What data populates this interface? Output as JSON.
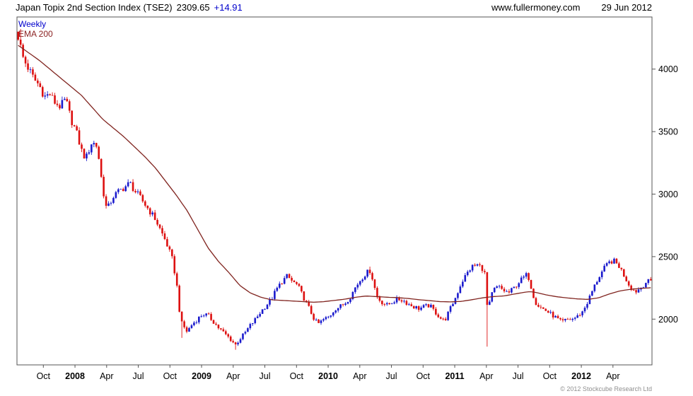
{
  "header": {
    "title": "Japan Topix 2nd Section Index (TSE2)",
    "last_price": "2309.65",
    "change": "+14.91",
    "site": "www.fullermoney.com",
    "date": "29 Jun 2012"
  },
  "legend": {
    "timeframe": "Weekly",
    "overlay": "EMA 200"
  },
  "footer": {
    "copyright": "© 2012 Stockcube Research Ltd"
  },
  "colors": {
    "up": "#1a1acd",
    "down": "#dd1010",
    "ema": "#80241f",
    "border": "#555555",
    "text": "#000000",
    "accent_blue": "#0000cc",
    "accent_maroon": "#8b2222",
    "muted": "#8f8f8f"
  },
  "chart_data": {
    "type": "candlestick",
    "title": "Japan Topix 2nd Section Index (TSE2)",
    "timeframe": "Weekly",
    "overlay": "EMA 200",
    "last_close": 2309.65,
    "change": "+14.91",
    "x_start": "Jul 2007",
    "x_end": "Jun 2012",
    "ylim": [
      1634,
      4417
    ],
    "y_ticks": [
      4000,
      3500,
      3000,
      2500,
      2000
    ],
    "x_ticks": [
      {
        "label": "Oct",
        "m": 2.5
      },
      {
        "label": "2008",
        "m": 5.5,
        "bold": true
      },
      {
        "label": "Apr",
        "m": 8.5
      },
      {
        "label": "Jul",
        "m": 11.5
      },
      {
        "label": "Oct",
        "m": 14.5
      },
      {
        "label": "2009",
        "m": 17.5,
        "bold": true
      },
      {
        "label": "Apr",
        "m": 20.5
      },
      {
        "label": "Jul",
        "m": 23.5
      },
      {
        "label": "Oct",
        "m": 26.5
      },
      {
        "label": "2010",
        "m": 29.5,
        "bold": true
      },
      {
        "label": "Apr",
        "m": 32.5
      },
      {
        "label": "Jul",
        "m": 35.5
      },
      {
        "label": "Oct",
        "m": 38.5
      },
      {
        "label": "2011",
        "m": 41.5,
        "bold": true
      },
      {
        "label": "Apr",
        "m": 44.5
      },
      {
        "label": "Jul",
        "m": 47.5
      },
      {
        "label": "Oct",
        "m": 50.5
      },
      {
        "label": "2012",
        "m": 53.5,
        "bold": true
      },
      {
        "label": "Apr",
        "m": 56.5
      }
    ],
    "weeks_total": 260,
    "months_total": 60.2,
    "price_anchors": [
      [
        0,
        4260
      ],
      [
        0.5,
        4080
      ],
      [
        1,
        4000
      ],
      [
        1.5,
        3920
      ],
      [
        2,
        3870
      ],
      [
        2.5,
        3780
      ],
      [
        3,
        3800
      ],
      [
        3.5,
        3730
      ],
      [
        4,
        3700
      ],
      [
        4.5,
        3760
      ],
      [
        5,
        3600
      ],
      [
        5.5,
        3500
      ],
      [
        6,
        3350
      ],
      [
        6.4,
        3280
      ],
      [
        7,
        3420
      ],
      [
        7.5,
        3380
      ],
      [
        8,
        3050
      ],
      [
        8.4,
        2870
      ],
      [
        9,
        2980
      ],
      [
        9.5,
        3020
      ],
      [
        10,
        3050
      ],
      [
        10.6,
        3090
      ],
      [
        11,
        3030
      ],
      [
        11.5,
        2980
      ],
      [
        12,
        2920
      ],
      [
        13,
        2800
      ],
      [
        13.5,
        2710
      ],
      [
        14,
        2620
      ],
      [
        14.6,
        2480
      ],
      [
        15,
        2300
      ],
      [
        15.4,
        1980
      ],
      [
        16,
        1900
      ],
      [
        16.5,
        1960
      ],
      [
        17,
        2000
      ],
      [
        17.5,
        2040
      ],
      [
        18,
        2030
      ],
      [
        18.5,
        1980
      ],
      [
        19,
        1930
      ],
      [
        19.5,
        1890
      ],
      [
        20,
        1850
      ],
      [
        20.6,
        1795
      ],
      [
        21,
        1840
      ],
      [
        21.5,
        1890
      ],
      [
        22,
        1950
      ],
      [
        22.5,
        2000
      ],
      [
        23,
        2060
      ],
      [
        23.5,
        2110
      ],
      [
        24,
        2160
      ],
      [
        24.5,
        2240
      ],
      [
        25,
        2300
      ],
      [
        25.5,
        2345
      ],
      [
        26,
        2300
      ],
      [
        26.5,
        2270
      ],
      [
        27,
        2180
      ],
      [
        27.5,
        2100
      ],
      [
        28,
        2010
      ],
      [
        28.4,
        1960
      ],
      [
        29,
        2000
      ],
      [
        29.5,
        2020
      ],
      [
        30,
        2080
      ],
      [
        30.5,
        2100
      ],
      [
        31,
        2130
      ],
      [
        31.5,
        2180
      ],
      [
        32,
        2260
      ],
      [
        32.5,
        2320
      ],
      [
        33,
        2370
      ],
      [
        33.4,
        2390
      ],
      [
        34,
        2180
      ],
      [
        34.4,
        2140
      ],
      [
        35,
        2110
      ],
      [
        35.5,
        2140
      ],
      [
        36,
        2160
      ],
      [
        36.5,
        2150
      ],
      [
        37,
        2120
      ],
      [
        37.5,
        2100
      ],
      [
        38,
        2085
      ],
      [
        38.5,
        2100
      ],
      [
        39,
        2110
      ],
      [
        39.5,
        2060
      ],
      [
        40,
        2010
      ],
      [
        40.4,
        1985
      ],
      [
        41,
        2090
      ],
      [
        41.5,
        2180
      ],
      [
        42,
        2290
      ],
      [
        42.5,
        2360
      ],
      [
        43,
        2420
      ],
      [
        43.6,
        2435
      ],
      [
        44.2,
        2390
      ],
      [
        44.5,
        2060
      ],
      [
        45,
        2230
      ],
      [
        45.5,
        2260
      ],
      [
        46,
        2230
      ],
      [
        46.5,
        2210
      ],
      [
        47,
        2250
      ],
      [
        47.5,
        2300
      ],
      [
        48,
        2340
      ],
      [
        48.3,
        2360
      ],
      [
        49,
        2140
      ],
      [
        49.4,
        2100
      ],
      [
        50,
        2070
      ],
      [
        50.5,
        2040
      ],
      [
        51,
        2010
      ],
      [
        51.5,
        1975
      ],
      [
        52,
        1995
      ],
      [
        52.5,
        2000
      ],
      [
        53,
        2020
      ],
      [
        53.5,
        2060
      ],
      [
        54,
        2140
      ],
      [
        54.5,
        2240
      ],
      [
        55,
        2330
      ],
      [
        55.5,
        2400
      ],
      [
        56,
        2450
      ],
      [
        56.4,
        2470
      ],
      [
        57,
        2420
      ],
      [
        57.5,
        2340
      ],
      [
        58,
        2260
      ],
      [
        58.5,
        2220
      ],
      [
        59,
        2250
      ],
      [
        59.5,
        2295
      ],
      [
        60.2,
        2309.65
      ]
    ],
    "wick_events": [
      {
        "m": 0.2,
        "high": 4320
      },
      {
        "m": 15.5,
        "low": 1850
      },
      {
        "m": 20.6,
        "low": 1755
      },
      {
        "m": 33.4,
        "high": 2420
      },
      {
        "m": 44.5,
        "low": 1780
      },
      {
        "m": 56.4,
        "high": 2485
      }
    ],
    "ema_anchors": [
      [
        0,
        4190
      ],
      [
        2,
        4070
      ],
      [
        4,
        3930
      ],
      [
        6,
        3790
      ],
      [
        8,
        3600
      ],
      [
        9,
        3530
      ],
      [
        10,
        3460
      ],
      [
        11,
        3380
      ],
      [
        12,
        3300
      ],
      [
        13,
        3210
      ],
      [
        14,
        3100
      ],
      [
        15,
        2990
      ],
      [
        16,
        2870
      ],
      [
        17,
        2720
      ],
      [
        18,
        2570
      ],
      [
        19,
        2460
      ],
      [
        20,
        2370
      ],
      [
        21,
        2270
      ],
      [
        22,
        2210
      ],
      [
        23,
        2175
      ],
      [
        24,
        2155
      ],
      [
        25,
        2150
      ],
      [
        26,
        2145
      ],
      [
        27,
        2140
      ],
      [
        28,
        2135
      ],
      [
        29,
        2140
      ],
      [
        30,
        2150
      ],
      [
        31,
        2160
      ],
      [
        32,
        2175
      ],
      [
        33,
        2185
      ],
      [
        34,
        2180
      ],
      [
        35,
        2175
      ],
      [
        36,
        2172
      ],
      [
        37,
        2165
      ],
      [
        38,
        2155
      ],
      [
        39,
        2148
      ],
      [
        40,
        2140
      ],
      [
        41,
        2138
      ],
      [
        42,
        2142
      ],
      [
        43,
        2155
      ],
      [
        44,
        2170
      ],
      [
        45,
        2180
      ],
      [
        46,
        2185
      ],
      [
        47,
        2200
      ],
      [
        48,
        2215
      ],
      [
        48.5,
        2220
      ],
      [
        49,
        2215
      ],
      [
        50,
        2195
      ],
      [
        51,
        2180
      ],
      [
        52,
        2170
      ],
      [
        53,
        2162
      ],
      [
        54,
        2158
      ],
      [
        55,
        2170
      ],
      [
        56,
        2200
      ],
      [
        57,
        2225
      ],
      [
        58,
        2238
      ],
      [
        59,
        2246
      ],
      [
        60.2,
        2252
      ]
    ]
  }
}
